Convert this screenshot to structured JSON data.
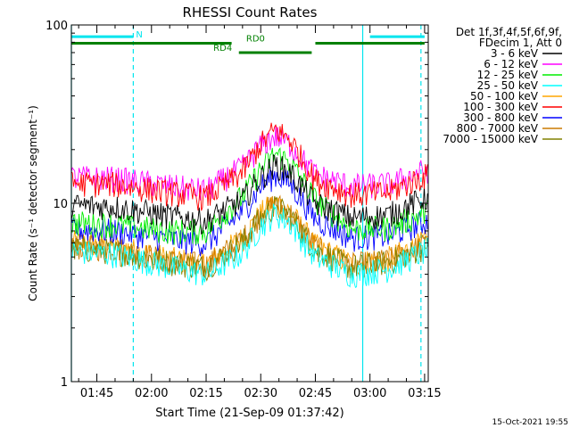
{
  "chart_data": {
    "type": "line",
    "title": "RHESSI Count Rates",
    "xlabel": "Start Time (21-Sep-09 01:37:42)",
    "ylabel": "Count Rate (s⁻¹ detector segment⁻¹)",
    "yscale": "log",
    "ylim": [
      1,
      100
    ],
    "xlim": [
      "01:38",
      "03:16"
    ],
    "x_tick_labels": [
      "01:45",
      "02:00",
      "02:15",
      "02:30",
      "02:45",
      "03:00",
      "03:15"
    ],
    "y_tick_labels": [
      "1",
      "10",
      "100"
    ],
    "legend_header": [
      "Det 1f,3f,4f,5f,6f,9f,",
      "FDecim 1, Att 0"
    ],
    "legend_position": "right",
    "footer_timestamp": "15-Oct-2021 19:55",
    "x": [
      "01:38",
      "01:50",
      "02:05",
      "02:15",
      "02:25",
      "02:30",
      "02:34",
      "02:38",
      "02:45",
      "02:55",
      "03:05",
      "03:16"
    ],
    "series": [
      {
        "name": "3 - 6 keV",
        "color": "#000000",
        "values": [
          9.8,
          9.6,
          8.5,
          8.0,
          10.5,
          14.0,
          16.5,
          15.0,
          10.0,
          8.3,
          8.6,
          11.0
        ]
      },
      {
        "name": "6 - 12 keV",
        "color": "#ff00ff",
        "values": [
          14.0,
          13.8,
          12.5,
          11.8,
          16.0,
          21.0,
          24.0,
          21.5,
          14.5,
          12.5,
          12.8,
          15.5
        ]
      },
      {
        "name": "12 - 25 keV",
        "color": "#00ee00",
        "values": [
          7.8,
          7.6,
          7.0,
          7.0,
          11.0,
          15.5,
          19.0,
          17.0,
          10.5,
          7.2,
          7.3,
          9.0
        ]
      },
      {
        "name": "25 - 50 keV",
        "color": "#00ffff",
        "values": [
          5.4,
          5.2,
          4.4,
          4.0,
          5.3,
          7.5,
          8.8,
          7.8,
          5.0,
          4.0,
          4.3,
          5.5
        ]
      },
      {
        "name": "50 - 100 keV",
        "color": "#ffa500",
        "values": [
          6.0,
          5.8,
          4.9,
          4.6,
          6.4,
          8.8,
          10.2,
          9.0,
          5.8,
          4.6,
          4.9,
          6.2
        ]
      },
      {
        "name": "100 - 300 keV",
        "color": "#ff0000",
        "values": [
          13.0,
          12.8,
          11.5,
          10.8,
          15.0,
          21.5,
          26.0,
          23.0,
          13.5,
          11.2,
          11.5,
          14.5
        ]
      },
      {
        "name": "300 - 800 keV",
        "color": "#0000ff",
        "values": [
          7.2,
          7.0,
          6.3,
          6.0,
          9.0,
          12.5,
          14.5,
          13.0,
          8.2,
          6.4,
          6.6,
          8.0
        ]
      },
      {
        "name": "800 - 7000 keV",
        "color": "#cc7a00",
        "values": [
          5.8,
          5.6,
          4.8,
          4.5,
          6.3,
          8.7,
          10.0,
          8.9,
          5.7,
          4.5,
          4.8,
          6.0
        ]
      },
      {
        "name": "7000 - 15000 keV",
        "color": "#808000",
        "values": [
          5.6,
          5.4,
          4.7,
          4.4,
          6.1,
          8.4,
          9.6,
          8.6,
          5.5,
          4.4,
          4.7,
          5.8
        ]
      }
    ],
    "draw_order": [
      4,
      7,
      8,
      3,
      6,
      2,
      0,
      1,
      5
    ],
    "markers": {
      "vertical_solid": {
        "times": [
          "01:38",
          "02:58"
        ],
        "color": "#00e5ee"
      },
      "vertical_dashed": {
        "times": [
          "01:55",
          "03:14"
        ],
        "color": "#00e5ee"
      },
      "night_bars": {
        "label": "N",
        "color": "#00e5ee",
        "level": 86,
        "spans": [
          [
            "01:38",
            "01:55"
          ],
          [
            "03:00",
            "03:15"
          ]
        ]
      },
      "saa_bars": {
        "color": "#008000",
        "segments": [
          {
            "start": "01:38",
            "end": "02:22",
            "level": 79
          },
          {
            "start": "02:24",
            "end": "02:44",
            "level": 70
          },
          {
            "start": "02:45",
            "end": "03:15",
            "level": 79
          }
        ],
        "labels": [
          {
            "text": "RD0",
            "time": "02:26",
            "value": 79
          },
          {
            "text": "RD4",
            "time": "02:17",
            "value": 70
          }
        ]
      }
    }
  }
}
